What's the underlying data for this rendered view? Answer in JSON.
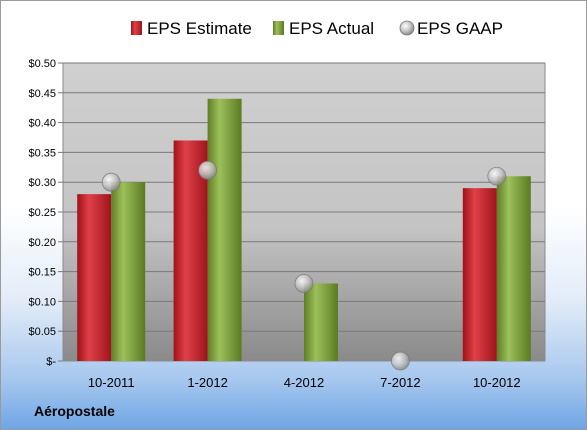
{
  "company_label": "Aéropostale",
  "chart_data": {
    "type": "bar",
    "categories": [
      "10-2011",
      "1-2012",
      "4-2012",
      "7-2012",
      "10-2012"
    ],
    "series": [
      {
        "name": "EPS Estimate",
        "kind": "bar",
        "color": "#c0202a",
        "values": [
          0.28,
          0.37,
          null,
          null,
          0.29
        ]
      },
      {
        "name": "EPS Actual",
        "kind": "bar",
        "color": "#7fa23a",
        "values": [
          0.3,
          0.44,
          0.13,
          null,
          0.31
        ]
      },
      {
        "name": "EPS GAAP",
        "kind": "marker",
        "color": "#c8c8c8",
        "values": [
          0.3,
          0.32,
          0.13,
          0.0,
          0.31
        ]
      }
    ],
    "y_ticks": [
      "$-",
      "$0.05",
      "$0.10",
      "$0.15",
      "$0.20",
      "$0.25",
      "$0.30",
      "$0.35",
      "$0.40",
      "$0.45",
      "$0.50"
    ],
    "ylim": [
      0,
      0.5
    ],
    "grid": true,
    "legend_position": "top"
  }
}
